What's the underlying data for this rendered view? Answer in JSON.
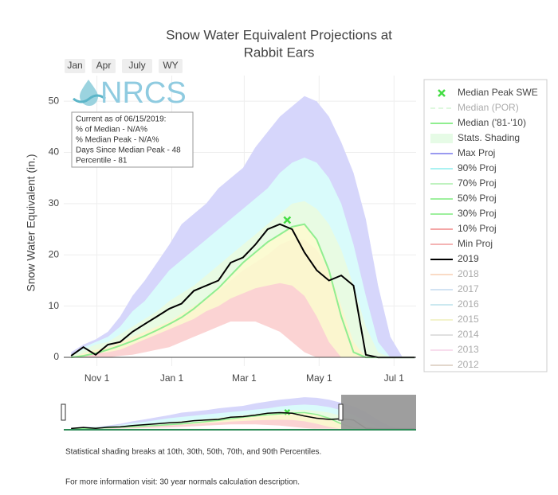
{
  "chart_data": {
    "type": "line",
    "title": [
      "Snow Water Equivalent Projections at",
      "Rabbit Ears"
    ],
    "buttons": [
      "Jan",
      "Apr",
      "July",
      "WY"
    ],
    "logo": "NRCS",
    "info_box": [
      "Current as of 06/15/2019:",
      "% of Median - N/A%",
      "% Median Peak - N/A%",
      "Days Since Median Peak - 48",
      "Percentile - 81"
    ],
    "y_label": "Snow Water Equivalent (in.)",
    "x": [
      10,
      20,
      30,
      40,
      50,
      60,
      70,
      80,
      90,
      100,
      110,
      120,
      130,
      140,
      150,
      160,
      170,
      180,
      190,
      200,
      210,
      220,
      230,
      240,
      250,
      260,
      270,
      280,
      290
    ],
    "xlim": [
      4,
      291
    ],
    "xticks": [
      {
        "value": 31,
        "label": "Nov 1"
      },
      {
        "value": 92,
        "label": "Jan 1"
      },
      {
        "value": 151,
        "label": "Mar 1"
      },
      {
        "value": 212,
        "label": "May 1"
      },
      {
        "value": 273,
        "label": "Jul 1"
      }
    ],
    "ylim": [
      -1.7,
      55
    ],
    "yticks": [
      0,
      10,
      20,
      30,
      40,
      50
    ],
    "grid": true,
    "legend_position": "right",
    "series": [
      {
        "name": "Median Peak SWE",
        "kind": "marker",
        "color": "#44dd44",
        "x": [
          186
        ],
        "values": [
          26.8
        ]
      },
      {
        "name": "Median (POR)",
        "kind": "dash",
        "color": "#b8f0b8",
        "visible": false
      },
      {
        "name": "Median ('81-'10)",
        "kind": "line",
        "color": "#90ee90",
        "values": [
          0,
          0.3,
          0.8,
          1.5,
          2.3,
          3.2,
          4.2,
          5.3,
          6.5,
          7.8,
          9.5,
          11.5,
          13.5,
          16,
          18.5,
          20.5,
          22.5,
          24,
          25.5,
          26,
          23,
          17,
          8,
          1,
          0,
          0,
          0,
          0,
          0
        ]
      },
      {
        "name": "Stats. Shading",
        "kind": "swatch",
        "color": "#e6fbe6"
      },
      {
        "name": "Max Proj",
        "kind": "band",
        "color": "#9a9af0",
        "fill": "#d6d6fb",
        "values": [
          1,
          2.5,
          3.5,
          5,
          8,
          12,
          15,
          18.5,
          22,
          26,
          28,
          30,
          33,
          35,
          37,
          41,
          44,
          47,
          49,
          51,
          50,
          47,
          42,
          36,
          27,
          14,
          4,
          0,
          0
        ]
      },
      {
        "name": "90% Proj",
        "kind": "band",
        "color": "#aaf2f2",
        "fill": "#d9fbfb",
        "values": [
          0.5,
          2,
          3,
          4,
          6,
          9,
          11,
          14,
          17,
          19,
          21,
          23,
          25,
          27,
          29,
          31,
          33,
          36,
          38,
          39,
          38,
          35,
          30,
          22,
          12,
          3,
          0,
          0,
          0
        ]
      },
      {
        "name": "70% Proj",
        "kind": "band",
        "color": "#bff2bf",
        "fill": "#e8fbe3",
        "values": [
          0.3,
          1.5,
          2.5,
          3,
          4.5,
          6,
          7.5,
          9,
          11,
          12.5,
          14,
          16,
          18,
          20,
          22,
          24,
          26,
          28,
          30,
          30.5,
          29,
          26,
          21,
          14,
          6,
          1,
          0,
          0,
          0
        ]
      },
      {
        "name": "50% Proj",
        "kind": "band",
        "color": "#9ef09e",
        "fill": "#fbfbd2",
        "values": [
          0,
          0.3,
          0.8,
          1.5,
          2.3,
          3.2,
          4.2,
          5.3,
          6.5,
          7.8,
          9.5,
          11.5,
          13.5,
          16,
          18.5,
          20.5,
          22.5,
          24,
          25.5,
          26,
          23,
          17,
          8,
          1,
          0,
          0,
          0,
          0,
          0
        ]
      },
      {
        "name": "30% Proj",
        "kind": "band",
        "color": "#9ef09e",
        "fill": "#fbf6cf",
        "values": [
          0,
          0.8,
          1.5,
          2,
          3,
          4,
          5,
          6,
          7,
          8.5,
          10,
          11.5,
          13,
          15,
          17,
          18.5,
          20,
          22,
          23,
          23,
          21,
          17,
          10,
          3,
          0,
          0,
          0,
          0,
          0
        ]
      },
      {
        "name": "10% Proj",
        "kind": "band",
        "color": "#f4a6a6",
        "fill": "#fbd3d3",
        "values": [
          0,
          0.3,
          0.8,
          1,
          1.5,
          2.5,
          3.5,
          4.5,
          5.5,
          6.5,
          7.5,
          9,
          10,
          11.5,
          12.5,
          13.5,
          14,
          14.5,
          14,
          12,
          8,
          3,
          0,
          0,
          0,
          0,
          0,
          0,
          0
        ]
      },
      {
        "name": "Min Proj",
        "kind": "band",
        "color": "#f4b4b4",
        "fill": "#ffffff",
        "values": [
          0,
          0,
          0,
          0,
          0.3,
          0.5,
          1,
          1.5,
          2,
          3,
          4,
          5,
          6,
          7,
          7,
          7,
          6,
          5,
          3,
          1,
          0,
          0,
          0,
          0,
          0,
          0,
          0,
          0,
          0
        ]
      },
      {
        "name": "2019",
        "kind": "line",
        "color": "#000000",
        "values": [
          0.3,
          2,
          0.5,
          2.5,
          3,
          5,
          6.5,
          8,
          9.5,
          10.5,
          13,
          14,
          15,
          18.5,
          19.5,
          22,
          25,
          26,
          25,
          20.5,
          17,
          15,
          16,
          14,
          0.5,
          0,
          0,
          0,
          0
        ]
      },
      {
        "name": "2018",
        "kind": "line",
        "color": "#f4b183",
        "visible": false
      },
      {
        "name": "2017",
        "kind": "line",
        "color": "#9dc3e6",
        "visible": false
      },
      {
        "name": "2016",
        "kind": "line",
        "color": "#8fd0e0",
        "visible": false
      },
      {
        "name": "2015",
        "kind": "line",
        "color": "#e6e68f",
        "visible": false
      },
      {
        "name": "2014",
        "kind": "line",
        "color": "#bbbbbb",
        "visible": false
      },
      {
        "name": "2013",
        "kind": "line",
        "color": "#f0b4d8",
        "visible": false
      },
      {
        "name": "2012",
        "kind": "line",
        "color": "#c0a890",
        "visible": false
      }
    ],
    "footnotes": [
      "Statistical shading breaks at 10th, 30th, 50th, 70th, and 90th Percentiles.",
      "For more information visit: 30 year normals calculation description."
    ]
  }
}
